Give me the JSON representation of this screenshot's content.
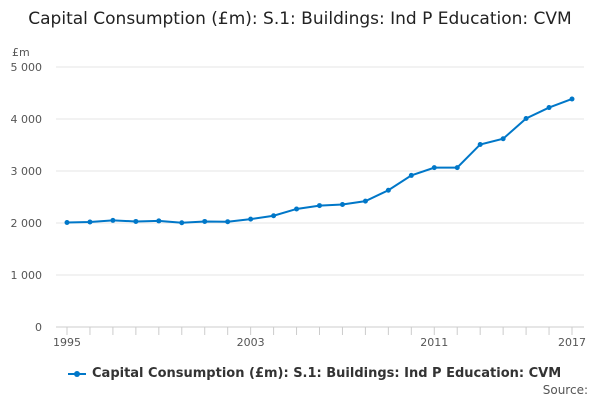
{
  "chart_data": {
    "type": "line",
    "title": "Capital Consumption (£m): S.1: Buildings: Ind P Education: CVM",
    "ylabel": "£m",
    "xlabel": "",
    "ylim": [
      0,
      5000
    ],
    "yticks": [
      0,
      1000,
      2000,
      3000,
      4000,
      5000
    ],
    "ytick_labels": [
      "0",
      "1 000",
      "2 000",
      "3 000",
      "4 000",
      "5 000"
    ],
    "xtick_labels": [
      "1995",
      "2003",
      "2011",
      "2017"
    ],
    "x": [
      1995,
      1996,
      1997,
      1998,
      1999,
      2000,
      2001,
      2002,
      2003,
      2004,
      2005,
      2006,
      2007,
      2008,
      2009,
      2010,
      2011,
      2012,
      2013,
      2014,
      2015,
      2016,
      2017
    ],
    "series": [
      {
        "name": "Capital Consumption (£m): S.1: Buildings: Ind P Education: CVM",
        "color": "#0077c8",
        "values": [
          2010,
          2020,
          2050,
          2030,
          2040,
          2005,
          2030,
          2025,
          2075,
          2140,
          2270,
          2335,
          2355,
          2420,
          2630,
          2915,
          3065,
          3065,
          3510,
          3620,
          4010,
          4220,
          4385
        ]
      }
    ],
    "grid": true,
    "legend_position": "bottom"
  },
  "source_label": "Source:"
}
